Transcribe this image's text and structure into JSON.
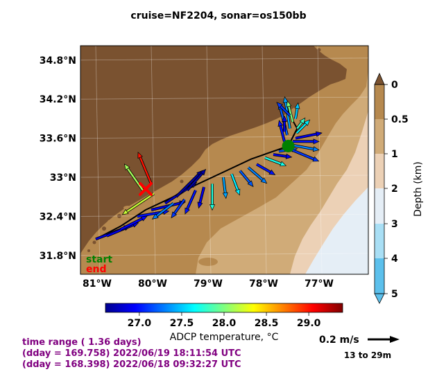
{
  "title": "cruise=NF2204,   sonar=os150bb",
  "map": {
    "lat_ticks": [
      "34.8°N",
      "34.2°N",
      "33.6°N",
      "33°N",
      "32.4°N",
      "31.8°N"
    ],
    "lon_ticks": [
      "81°W",
      "80°W",
      "79°W",
      "78°W",
      "77°W"
    ],
    "start_label": "start",
    "end_label": "end",
    "colors": {
      "land": "#7a5230",
      "shelf": "#b6894f",
      "mid": "#d0ab78",
      "slope": "#ecd1b6",
      "deep1": "#e5eef6",
      "track": "#000000",
      "start": "#008000",
      "end": "#ff0000"
    }
  },
  "depth_colorbar": {
    "label": "Depth (km)",
    "ticks": [
      "0",
      "0.5",
      "1",
      "2",
      "3",
      "4",
      "5"
    ],
    "colors": [
      "#7a5230",
      "#b6894f",
      "#d0ab78",
      "#ecd1b6",
      "#e5eef6",
      "#a9dff5",
      "#5cc0ec"
    ]
  },
  "temp_colorbar": {
    "label": "ADCP temperature, °C",
    "ticks": [
      "27.0",
      "27.5",
      "28.0",
      "28.5",
      "29.0"
    ],
    "range": [
      26.6,
      29.4
    ]
  },
  "scale": {
    "label": "0.2 m/s",
    "depth_range": "13 to 29m"
  },
  "info": {
    "line1": "time range ( 1.36 days)",
    "line2": "(dday = 169.758) 2022/06/19 18:11:54 UTC",
    "line3": "(dday = 168.398) 2022/06/18 09:32:27 UTC"
  },
  "track": [
    [
      -81.0,
      32.05
    ],
    [
      -80.55,
      32.25
    ],
    [
      -80.1,
      32.5
    ],
    [
      -79.65,
      32.68
    ],
    [
      -79.2,
      32.88
    ],
    [
      -78.7,
      33.08
    ],
    [
      -78.2,
      33.28
    ],
    [
      -77.8,
      33.4
    ],
    [
      -77.53,
      33.48
    ],
    [
      -77.37,
      33.75
    ],
    [
      -77.5,
      33.95
    ]
  ],
  "vectors": [
    {
      "lon": -81.0,
      "lat": 32.05,
      "u": 0.13,
      "v": 0.05,
      "t": 26.85
    },
    {
      "lon": -80.8,
      "lat": 32.1,
      "u": 0.12,
      "v": 0.05,
      "t": 26.9
    },
    {
      "lon": -80.55,
      "lat": 32.2,
      "u": 0.1,
      "v": 0.05,
      "t": 26.95
    },
    {
      "lon": -80.25,
      "lat": 32.4,
      "u": 0.12,
      "v": 0.02,
      "t": 27.0
    },
    {
      "lon": -80.0,
      "lat": 32.5,
      "u": 0.13,
      "v": 0.03,
      "t": 26.9
    },
    {
      "lon": -79.75,
      "lat": 32.6,
      "u": 0.12,
      "v": 0.08,
      "t": 26.8
    },
    {
      "lon": -79.55,
      "lat": 32.7,
      "u": 0.1,
      "v": 0.1,
      "t": 26.7
    },
    {
      "lon": -79.35,
      "lat": 32.8,
      "u": 0.07,
      "v": 0.08,
      "t": 26.7
    },
    {
      "lon": -80.15,
      "lat": 32.8,
      "u": -0.07,
      "v": 0.1,
      "t": 28.1
    },
    {
      "lon": -80.0,
      "lat": 32.9,
      "u": -0.05,
      "v": 0.12,
      "t": 29.0
    },
    {
      "lon": -79.95,
      "lat": 32.75,
      "u": -0.12,
      "v": -0.08,
      "t": 28.2
    },
    {
      "lon": -79.6,
      "lat": 32.6,
      "u": -0.08,
      "v": -0.06,
      "t": 27.3
    },
    {
      "lon": -79.4,
      "lat": 32.66,
      "u": -0.05,
      "v": -0.07,
      "t": 27.1
    },
    {
      "lon": -79.2,
      "lat": 32.8,
      "u": -0.04,
      "v": -0.09,
      "t": 27.0
    },
    {
      "lon": -79.05,
      "lat": 32.85,
      "u": -0.02,
      "v": -0.08,
      "t": 26.9
    },
    {
      "lon": -78.9,
      "lat": 32.9,
      "u": 0.0,
      "v": -0.1,
      "t": 27.75
    },
    {
      "lon": -78.7,
      "lat": 33.0,
      "u": 0.01,
      "v": -0.08,
      "t": 27.4
    },
    {
      "lon": -78.55,
      "lat": 33.05,
      "u": 0.03,
      "v": -0.08,
      "t": 27.6
    },
    {
      "lon": -78.4,
      "lat": 33.1,
      "u": 0.05,
      "v": -0.06,
      "t": 27.2
    },
    {
      "lon": -78.25,
      "lat": 33.15,
      "u": 0.07,
      "v": -0.06,
      "t": 27.3
    },
    {
      "lon": -78.1,
      "lat": 33.2,
      "u": 0.07,
      "v": -0.04,
      "t": 27.0
    },
    {
      "lon": -77.95,
      "lat": 33.3,
      "u": 0.08,
      "v": -0.03,
      "t": 27.7
    },
    {
      "lon": -77.8,
      "lat": 33.35,
      "u": 0.07,
      "v": -0.01,
      "t": 26.9
    },
    {
      "lon": -77.7,
      "lat": 33.4,
      "u": 0.07,
      "v": 0.01,
      "t": 27.2
    },
    {
      "lon": -77.55,
      "lat": 33.45,
      "u": 0.12,
      "v": -0.05,
      "t": 27.1
    },
    {
      "lon": -77.5,
      "lat": 33.5,
      "u": 0.11,
      "v": -0.02,
      "t": 27.3
    },
    {
      "lon": -77.45,
      "lat": 33.55,
      "u": 0.1,
      "v": 0.0,
      "t": 27.0
    },
    {
      "lon": -77.4,
      "lat": 33.6,
      "u": 0.1,
      "v": 0.02,
      "t": 26.9
    },
    {
      "lon": -77.38,
      "lat": 33.68,
      "u": 0.05,
      "v": 0.05,
      "t": 27.6
    },
    {
      "lon": -77.37,
      "lat": 33.75,
      "u": 0.03,
      "v": 0.04,
      "t": 27.8
    },
    {
      "lon": -77.6,
      "lat": 33.55,
      "u": -0.02,
      "v": 0.08,
      "t": 27.0
    },
    {
      "lon": -77.55,
      "lat": 33.65,
      "u": -0.03,
      "v": 0.12,
      "t": 27.2
    },
    {
      "lon": -77.5,
      "lat": 33.75,
      "u": -0.02,
      "v": 0.12,
      "t": 27.4
    },
    {
      "lon": -77.45,
      "lat": 33.85,
      "u": -0.02,
      "v": 0.08,
      "t": 28.0
    },
    {
      "lon": -77.5,
      "lat": 33.95,
      "u": -0.05,
      "v": 0.05,
      "t": 27.1
    },
    {
      "lon": -77.4,
      "lat": 33.9,
      "u": 0.01,
      "v": 0.06,
      "t": 27.5
    },
    {
      "lon": -77.6,
      "lat": 33.7,
      "u": 0.0,
      "v": 0.06,
      "t": 26.9
    }
  ]
}
